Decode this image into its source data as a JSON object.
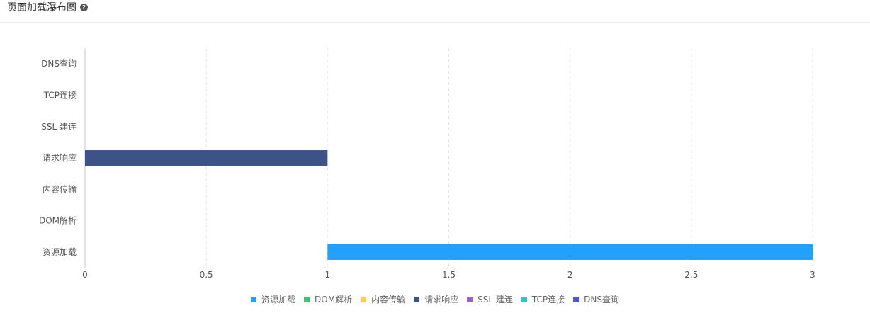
{
  "panel": {
    "title": "页面加载瀑布图",
    "help_icon": "question-circle-icon",
    "help_glyph": "?"
  },
  "chart_data": {
    "type": "bar",
    "orientation": "horizontal",
    "layout": "waterfall",
    "categories": [
      "DNS查询",
      "TCP连接",
      "SSL 建连",
      "请求响应",
      "内容传输",
      "DOM解析",
      "资源加载"
    ],
    "series": [
      {
        "name": "DNS查询",
        "color": "#4f5bd5",
        "start": 0,
        "end": 0
      },
      {
        "name": "TCP连接",
        "color": "#2ec4c8",
        "start": 0,
        "end": 0
      },
      {
        "name": "SSL 建连",
        "color": "#9b5de5",
        "start": 0,
        "end": 0
      },
      {
        "name": "请求响应",
        "color": "#3d5287",
        "start": 0,
        "end": 1
      },
      {
        "name": "内容传输",
        "color": "#ffd04a",
        "start": 1,
        "end": 1
      },
      {
        "name": "DOM解析",
        "color": "#2ecc71",
        "start": 1,
        "end": 1
      },
      {
        "name": "资源加载",
        "color": "#23a0fb",
        "start": 1,
        "end": 3
      }
    ],
    "xlim": [
      0,
      3
    ],
    "x_ticks": [
      "0",
      "0.5",
      "1",
      "1.5",
      "2",
      "2.5",
      "3"
    ],
    "x_tick_values": [
      0,
      0.5,
      1,
      1.5,
      2,
      2.5,
      3
    ],
    "grid": "vertical-dashed",
    "legend_position": "bottom-center",
    "legend_order": [
      "资源加载",
      "DOM解析",
      "内容传输",
      "请求响应",
      "SSL 建连",
      "TCP连接",
      "DNS查询"
    ]
  }
}
